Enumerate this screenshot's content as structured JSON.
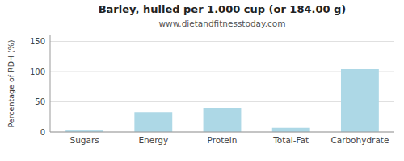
{
  "chart_data": {
    "type": "bar",
    "title": "Barley, hulled per 1.000 cup (or 184.00 g)",
    "subtitle": "www.dietandfitnesstoday.com",
    "categories": [
      "Sugars",
      "Energy",
      "Protein",
      "Total-Fat",
      "Carbohydrate"
    ],
    "values": [
      2.5,
      33,
      40,
      7,
      104
    ],
    "color": "#add8e6",
    "ylabel": "Percentage of RDH (%)",
    "ylim": [
      0,
      160
    ],
    "yticks": [
      0,
      50,
      100,
      150
    ],
    "grid": true
  }
}
